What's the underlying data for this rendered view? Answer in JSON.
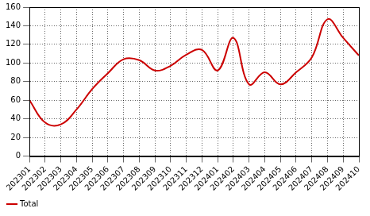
{
  "chart_data": {
    "type": "line",
    "categories": [
      "202301",
      "202302",
      "202303",
      "202304",
      "202305",
      "202306",
      "202307",
      "202308",
      "202309",
      "202310",
      "202311",
      "202312",
      "202401",
      "202402",
      "202403",
      "202404",
      "202405",
      "202406",
      "202407",
      "202408",
      "202409",
      "202410"
    ],
    "series": [
      {
        "name": "Total",
        "color": "#cc0000",
        "values": [
          60,
          36,
          34,
          50,
          72,
          89,
          104,
          103,
          92,
          97,
          109,
          114,
          92,
          127,
          77,
          90,
          77,
          90,
          106,
          147,
          127,
          108
        ]
      }
    ],
    "ylim": [
      0,
      160
    ],
    "yticks": [
      0,
      20,
      40,
      60,
      80,
      100,
      120,
      140,
      160
    ],
    "grid": true,
    "legend": "bottom"
  }
}
